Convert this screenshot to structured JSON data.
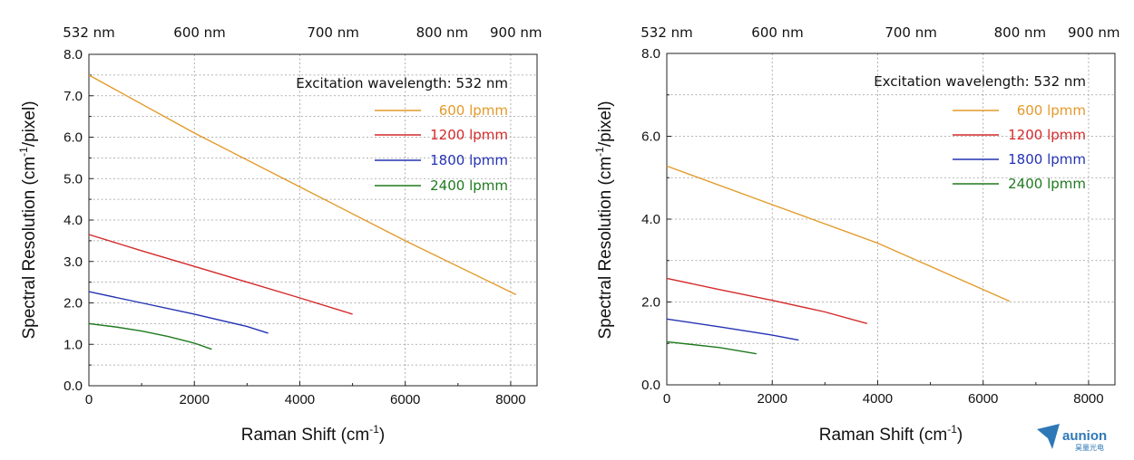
{
  "chart_data": [
    {
      "type": "line",
      "top_axis_labels": [
        "532 nm",
        "600 nm",
        "700 nm",
        "800 nm",
        "900 nm"
      ],
      "top_axis_positions": [
        0,
        2100,
        4630,
        6700,
        8100
      ],
      "xlabel_main": "Raman Shift (cm",
      "xlabel_sup": "-1",
      "xlabel_end": ")",
      "ylabel_main": "Spectral Resolution (cm",
      "ylabel_sup": "-1",
      "ylabel_end": "/pixel)",
      "xlim": [
        0,
        8500
      ],
      "ylim": [
        0,
        8.0
      ],
      "xticks": [
        0,
        2000,
        4000,
        6000,
        8000
      ],
      "yticks": [
        0.0,
        1.0,
        2.0,
        3.0,
        4.0,
        5.0,
        6.0,
        7.0,
        8.0
      ],
      "yminor": [
        0.5,
        1.5,
        2.5,
        3.5,
        4.5,
        5.5,
        6.5,
        7.5
      ],
      "ytick_decimals": 1,
      "grid": true,
      "annotation": "Excitation wavelength: 532 nm",
      "legend_position": "top-right",
      "series": [
        {
          "name": "600 lpmm",
          "color": "#e39a2a",
          "x": [
            0,
            2000,
            4000,
            6000,
            8100
          ],
          "y": [
            7.5,
            6.1,
            4.8,
            3.5,
            2.2
          ]
        },
        {
          "name": "1200 lpmm",
          "color": "#d42a2a",
          "x": [
            0,
            1000,
            2000,
            3000,
            4000,
            5000
          ],
          "y": [
            3.65,
            3.26,
            2.88,
            2.5,
            2.12,
            1.73
          ]
        },
        {
          "name": "1800 lpmm",
          "color": "#2433b3",
          "x": [
            0,
            1000,
            2000,
            3000,
            3400
          ],
          "y": [
            2.27,
            2.0,
            1.73,
            1.43,
            1.27
          ]
        },
        {
          "name": "2400 lpmm",
          "color": "#1f7a1f",
          "x": [
            0,
            500,
            1000,
            1500,
            2000,
            2330
          ],
          "y": [
            1.5,
            1.42,
            1.32,
            1.19,
            1.03,
            0.88
          ]
        }
      ]
    },
    {
      "type": "line",
      "top_axis_labels": [
        "532 nm",
        "600 nm",
        "700 nm",
        "800 nm",
        "900 nm"
      ],
      "top_axis_positions": [
        0,
        2100,
        4630,
        6700,
        8100
      ],
      "xlabel_main": "Raman Shift (cm",
      "xlabel_sup": "-1",
      "xlabel_end": ")",
      "ylabel_main": "Spectral Resolution (cm",
      "ylabel_sup": "-1",
      "ylabel_end": "/pixel)",
      "xlim": [
        0,
        8500
      ],
      "ylim": [
        0,
        8.0
      ],
      "xticks": [
        0,
        2000,
        4000,
        6000,
        8000
      ],
      "yticks": [
        0.0,
        2.0,
        4.0,
        6.0,
        8.0
      ],
      "yminor": [
        1.0,
        3.0,
        5.0,
        7.0
      ],
      "ytick_decimals": 1,
      "grid": true,
      "annotation": "Excitation wavelength: 532 nm",
      "legend_position": "top-right",
      "series": [
        {
          "name": "600 lpmm",
          "color": "#e39a2a",
          "x": [
            0,
            2000,
            4000,
            6500
          ],
          "y": [
            5.28,
            4.35,
            3.42,
            2.02
          ]
        },
        {
          "name": "1200 lpmm",
          "color": "#d42a2a",
          "x": [
            0,
            1000,
            2000,
            3000,
            3800
          ],
          "y": [
            2.57,
            2.3,
            2.04,
            1.76,
            1.48
          ]
        },
        {
          "name": "1800 lpmm",
          "color": "#2433b3",
          "x": [
            0,
            1000,
            2000,
            2500
          ],
          "y": [
            1.59,
            1.4,
            1.2,
            1.08
          ]
        },
        {
          "name": "2400 lpmm",
          "color": "#1f7a1f",
          "x": [
            0,
            1000,
            1700
          ],
          "y": [
            1.04,
            0.9,
            0.75
          ]
        }
      ]
    }
  ],
  "logo": {
    "name": "aunion",
    "sub": "昊量光电",
    "color": "#2f78b7"
  }
}
